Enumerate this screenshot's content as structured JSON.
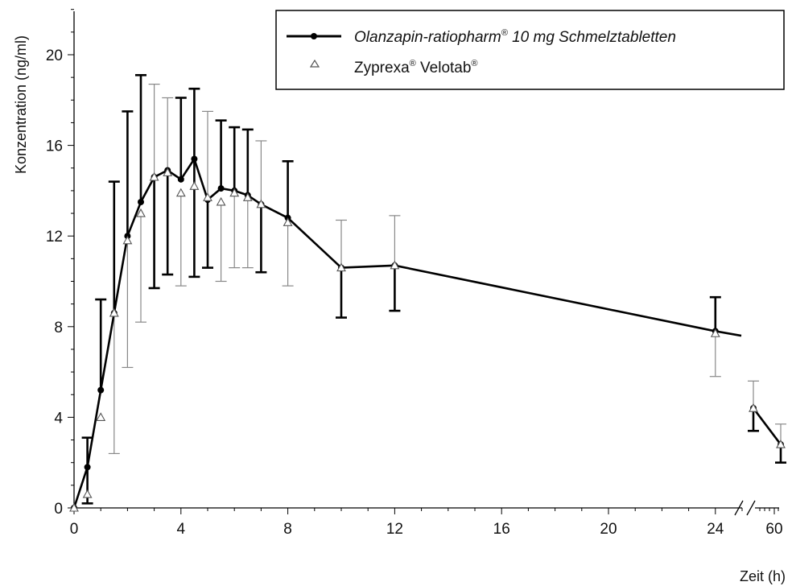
{
  "chart_data": {
    "type": "line",
    "ylabel": "Konzentration (ng/ml)",
    "xlabel": "Zeit (h)",
    "ylim": [
      0,
      22
    ],
    "y_ticks": [
      0,
      4,
      8,
      12,
      16,
      20
    ],
    "x_ticks": [
      0,
      4,
      8,
      12,
      16,
      20,
      24
    ],
    "x_break_ticks": [
      "60"
    ],
    "grid": false,
    "legend_position": "top-right",
    "series": [
      {
        "name": "Olanzapin-ratiopharm® 10 mg Schmelztabletten",
        "legend_main": "Olanzapin-ratiopharm",
        "legend_sup": "®",
        "legend_rest": " 10 mg Schmelztabletten",
        "marker": "filled-circle",
        "color": "#000000",
        "x": [
          0,
          0.5,
          1,
          1.5,
          2,
          2.5,
          3,
          3.5,
          4,
          4.5,
          5,
          5.5,
          6,
          6.5,
          7,
          8,
          10,
          12,
          24
        ],
        "y": [
          0,
          1.8,
          5.2,
          8.6,
          12.0,
          13.5,
          14.6,
          14.9,
          14.5,
          15.4,
          13.6,
          14.1,
          14.0,
          13.8,
          13.4,
          12.8,
          10.6,
          10.7,
          7.8
        ],
        "err_low": [
          0,
          0.2,
          0,
          0.0,
          0,
          0,
          9.7,
          10.3,
          0,
          10.2,
          10.6,
          0,
          0,
          0,
          10.4,
          0,
          8.4,
          8.7,
          0
        ],
        "err_high": [
          0,
          3.1,
          9.2,
          14.4,
          17.5,
          19.1,
          0,
          0,
          18.1,
          18.5,
          0,
          17.1,
          16.8,
          16.7,
          0,
          15.3,
          0,
          0,
          9.3
        ],
        "after_break_y": [
          4.4,
          2.8
        ],
        "after_break_err_low": [
          3.4,
          2.0
        ],
        "after_break_err_high": [
          0,
          0
        ]
      },
      {
        "name": "Zyprexa® Velotab®",
        "legend_main": "Zyprexa",
        "legend_sup": "®",
        "legend_mid": " Velotab",
        "legend_sup2": "®",
        "marker": "open-triangle",
        "color": "#7a7a7a",
        "x": [
          0,
          0.5,
          1,
          1.5,
          2,
          2.5,
          3,
          3.5,
          4,
          4.5,
          5,
          5.5,
          6,
          6.5,
          7,
          8,
          10,
          12,
          24
        ],
        "y": [
          0,
          0.6,
          4.0,
          8.6,
          11.8,
          13.0,
          14.6,
          14.8,
          13.9,
          14.2,
          13.7,
          13.5,
          13.9,
          13.7,
          13.4,
          12.6,
          10.6,
          10.7,
          7.7
        ],
        "err_low": [
          0,
          0.0,
          0,
          2.4,
          6.2,
          8.2,
          0,
          0,
          9.8,
          0,
          0,
          10.0,
          10.6,
          10.6,
          0,
          9.8,
          0,
          0,
          5.8
        ],
        "err_high": [
          0,
          0,
          0,
          0,
          0,
          0,
          18.7,
          18.1,
          0,
          0,
          17.5,
          0,
          0,
          0,
          16.2,
          0,
          12.7,
          12.9,
          0
        ],
        "after_break_y": [
          4.4,
          2.8
        ],
        "after_break_err_low": [
          0,
          0
        ],
        "after_break_err_high": [
          5.6,
          3.7
        ]
      }
    ]
  }
}
